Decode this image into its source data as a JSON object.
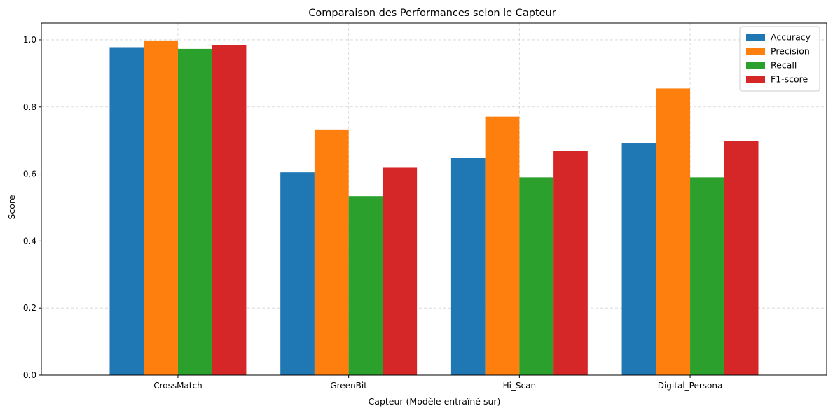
{
  "chart_data": {
    "type": "bar",
    "title": "Comparaison des Performances selon le Capteur",
    "xlabel": "Capteur (Modèle entraîné sur)",
    "ylabel": "Score",
    "categories": [
      "CrossMatch",
      "GreenBit",
      "Hi_Scan",
      "Digital_Persona"
    ],
    "ylim": [
      0,
      1.05
    ],
    "yticks": [
      0.0,
      0.2,
      0.4,
      0.6,
      0.8,
      1.0
    ],
    "ytick_labels": [
      "0.0",
      "0.2",
      "0.4",
      "0.6",
      "0.8",
      "1.0"
    ],
    "grid": true,
    "legend_position": "top-right",
    "series": [
      {
        "name": "Accuracy",
        "color": "#1f77b4",
        "values": [
          0.978,
          0.605,
          0.648,
          0.693
        ]
      },
      {
        "name": "Precision",
        "color": "#ff7f0e",
        "values": [
          0.998,
          0.733,
          0.771,
          0.855
        ]
      },
      {
        "name": "Recall",
        "color": "#2ca02c",
        "values": [
          0.973,
          0.534,
          0.59,
          0.59
        ]
      },
      {
        "name": "F1-score",
        "color": "#d62728",
        "values": [
          0.985,
          0.619,
          0.668,
          0.698
        ]
      }
    ]
  }
}
